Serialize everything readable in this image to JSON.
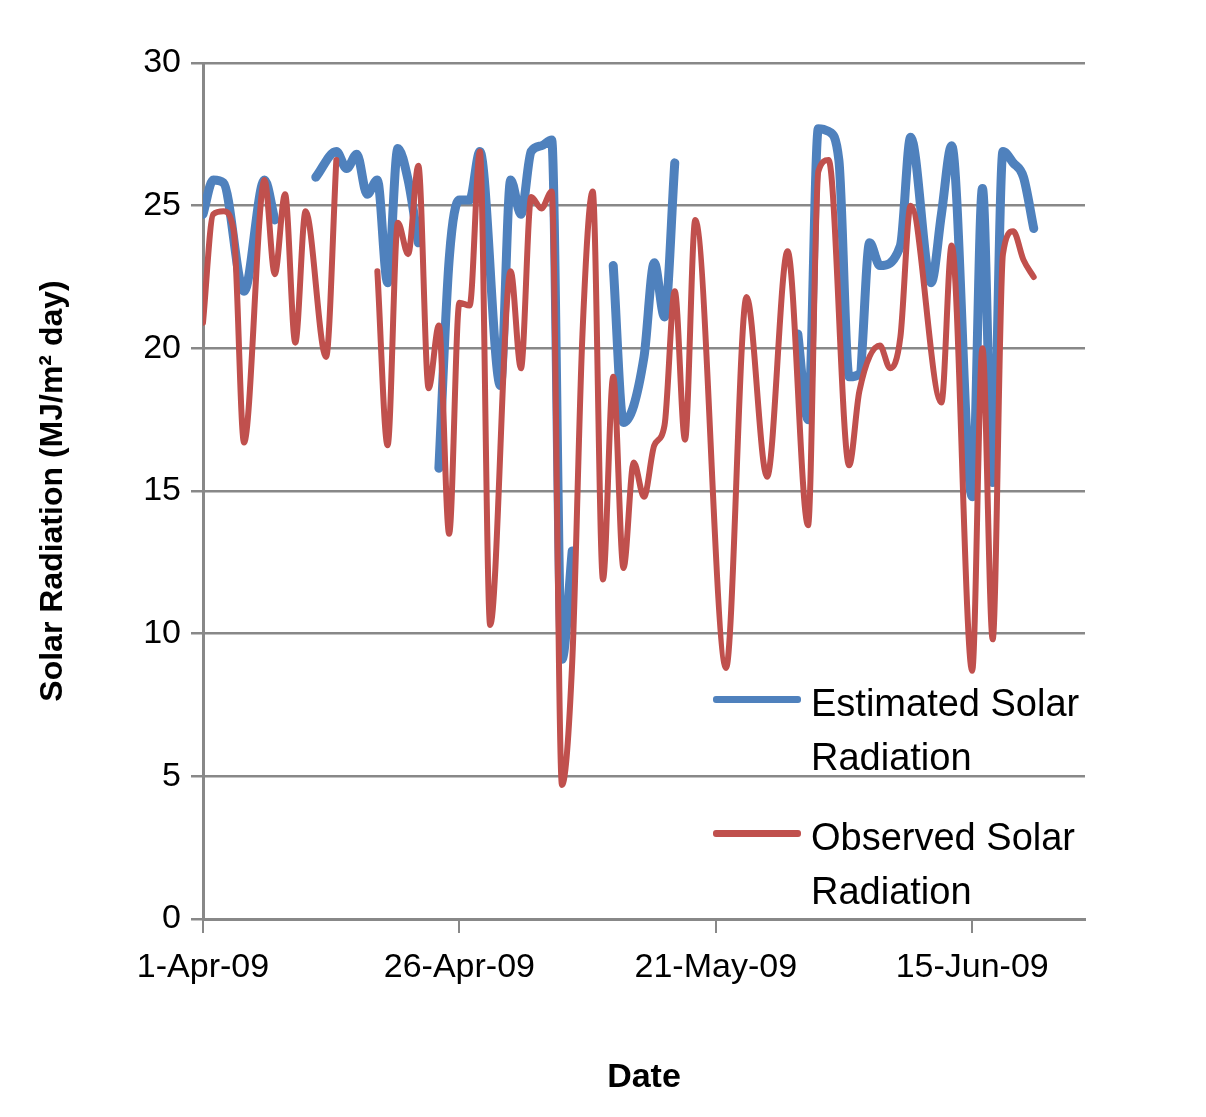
{
  "chart_data": {
    "type": "line",
    "xlabel": "Date",
    "ylabel": "Solar Radiation (MJ/m² day)",
    "xlim": [
      "2009-04-01",
      "2009-06-26"
    ],
    "xticks": [
      {
        "value": "2009-04-01",
        "label": "1-Apr-09"
      },
      {
        "value": "2009-04-26",
        "label": "26-Apr-09"
      },
      {
        "value": "2009-05-21",
        "label": "21-May-09"
      },
      {
        "value": "2009-06-15",
        "label": "15-Jun-09"
      }
    ],
    "ylim": [
      0,
      30
    ],
    "yticks": [
      0,
      5,
      10,
      15,
      20,
      25,
      30
    ],
    "grid": "y",
    "legend": "bottom right",
    "marker": "none",
    "line_style": "solid",
    "series": [
      {
        "name": "Estimated Solar Radiation",
        "color": "#4f81bd",
        "x": [
          "2009-04-01",
          "2009-04-02",
          "2009-04-03",
          "2009-04-05",
          "2009-04-07",
          "2009-04-08",
          "2009-04-09",
          "2009-04-12",
          "2009-04-14",
          "2009-04-15",
          "2009-04-16",
          "2009-04-17",
          "2009-04-18",
          "2009-04-19",
          "2009-04-20",
          "2009-04-21",
          "2009-04-22",
          "2009-04-23",
          "2009-04-24",
          "2009-04-25",
          "2009-04-26",
          "2009-04-27",
          "2009-04-28",
          "2009-04-30",
          "2009-05-01",
          "2009-05-02",
          "2009-05-03",
          "2009-05-04",
          "2009-05-05",
          "2009-05-06",
          "2009-05-07",
          "2009-05-08",
          "2009-05-11",
          "2009-05-12",
          "2009-05-14",
          "2009-05-15",
          "2009-05-16",
          "2009-05-17",
          "2009-05-18",
          "2009-05-29",
          "2009-05-30",
          "2009-05-31",
          "2009-06-01",
          "2009-06-02",
          "2009-06-03",
          "2009-06-04",
          "2009-06-05",
          "2009-06-06",
          "2009-06-08",
          "2009-06-09",
          "2009-06-11",
          "2009-06-12",
          "2009-06-13",
          "2009-06-15",
          "2009-06-16",
          "2009-06-17",
          "2009-06-18",
          "2009-06-19",
          "2009-06-20",
          "2009-06-21"
        ],
        "values": [
          24.7,
          25.9,
          25.8,
          22.0,
          25.9,
          24.5,
          null,
          26.0,
          26.9,
          26.3,
          26.8,
          25.4,
          25.9,
          22.3,
          27.0,
          25.9,
          23.7,
          null,
          15.8,
          23.1,
          25.2,
          25.2,
          26.9,
          18.7,
          25.9,
          24.7,
          26.9,
          27.1,
          27.3,
          9.1,
          12.9,
          null,
          22.9,
          17.4,
          19.7,
          23.0,
          21.1,
          26.5,
          null,
          20.5,
          17.5,
          27.7,
          27.6,
          26.6,
          19.0,
          19.1,
          23.7,
          22.9,
          23.6,
          27.4,
          22.3,
          24.7,
          27.1,
          14.8,
          25.6,
          15.3,
          26.9,
          26.5,
          26.0,
          24.2
        ]
      },
      {
        "name": "Observed Solar Radiation",
        "color": "#c0504d",
        "x": [
          "2009-04-01",
          "2009-04-02",
          "2009-04-03",
          "2009-04-04",
          "2009-04-05",
          "2009-04-07",
          "2009-04-08",
          "2009-04-09",
          "2009-04-10",
          "2009-04-11",
          "2009-04-13",
          "2009-04-14",
          "2009-04-15",
          "2009-04-18",
          "2009-04-19",
          "2009-04-20",
          "2009-04-21",
          "2009-04-22",
          "2009-04-23",
          "2009-04-24",
          "2009-04-25",
          "2009-04-26",
          "2009-04-27",
          "2009-04-28",
          "2009-04-29",
          "2009-05-01",
          "2009-05-02",
          "2009-05-03",
          "2009-05-04",
          "2009-05-05",
          "2009-05-06",
          "2009-05-07",
          "2009-05-08",
          "2009-05-09",
          "2009-05-10",
          "2009-05-11",
          "2009-05-12",
          "2009-05-13",
          "2009-05-14",
          "2009-05-15",
          "2009-05-16",
          "2009-05-17",
          "2009-05-18",
          "2009-05-19",
          "2009-05-22",
          "2009-05-24",
          "2009-05-26",
          "2009-05-28",
          "2009-05-30",
          "2009-05-31",
          "2009-06-01",
          "2009-06-03",
          "2009-06-04",
          "2009-06-06",
          "2009-06-07",
          "2009-06-08",
          "2009-06-09",
          "2009-06-12",
          "2009-06-13",
          "2009-06-15",
          "2009-06-16",
          "2009-06-17",
          "2009-06-18",
          "2009-06-19",
          "2009-06-20",
          "2009-06-21"
        ],
        "values": [
          20.9,
          24.7,
          24.8,
          24.1,
          16.7,
          25.9,
          22.6,
          25.4,
          20.2,
          24.8,
          19.7,
          26.6,
          null,
          22.7,
          16.6,
          24.4,
          23.3,
          26.4,
          18.6,
          20.8,
          13.5,
          21.6,
          21.5,
          26.9,
          10.3,
          22.7,
          19.3,
          25.3,
          24.9,
          25.5,
          4.7,
          9.0,
          20.5,
          25.5,
          11.9,
          19.0,
          12.3,
          16.0,
          14.8,
          16.6,
          17.3,
          22.0,
          16.8,
          24.5,
          8.8,
          21.8,
          15.5,
          23.4,
          13.8,
          26.2,
          26.6,
          15.9,
          18.5,
          20.1,
          19.3,
          20.4,
          25.0,
          18.1,
          23.6,
          8.7,
          20.0,
          9.8,
          23.3,
          24.1,
          23.1,
          22.5
        ]
      }
    ]
  }
}
